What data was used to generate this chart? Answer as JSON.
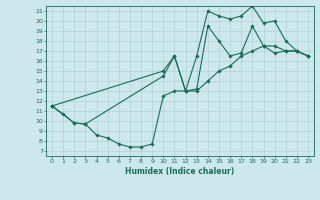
{
  "title": "",
  "xlabel": "Humidex (Indice chaleur)",
  "bg_color": "#cce8ec",
  "line_color": "#1a6b5a",
  "grid_color": "#aacccc",
  "xlim": [
    -0.5,
    23.5
  ],
  "ylim": [
    6.5,
    21.5
  ],
  "xticks": [
    0,
    1,
    2,
    3,
    4,
    5,
    6,
    7,
    8,
    9,
    10,
    11,
    12,
    13,
    14,
    15,
    16,
    17,
    18,
    19,
    20,
    21,
    22,
    23
  ],
  "yticks": [
    7,
    8,
    9,
    10,
    11,
    12,
    13,
    14,
    15,
    16,
    17,
    18,
    19,
    20,
    21
  ],
  "line1_x": [
    0,
    1,
    2,
    3,
    4,
    5,
    6,
    7,
    8,
    9,
    10,
    11,
    12,
    13,
    14,
    15,
    16,
    17,
    18,
    19,
    20,
    21,
    22,
    23
  ],
  "line1_y": [
    11.5,
    10.7,
    9.8,
    9.7,
    8.6,
    8.3,
    7.7,
    7.4,
    7.4,
    7.7,
    12.5,
    13.0,
    13.0,
    13.0,
    14.0,
    15.0,
    15.5,
    16.5,
    17.0,
    17.5,
    17.5,
    17.0,
    17.0,
    16.5
  ],
  "line2_x": [
    0,
    2,
    3,
    10,
    11,
    12,
    13,
    14,
    15,
    16,
    17,
    18,
    19,
    20,
    21,
    22,
    23
  ],
  "line2_y": [
    11.5,
    9.8,
    9.7,
    14.5,
    16.5,
    13.0,
    13.2,
    19.5,
    18.0,
    16.5,
    16.8,
    19.5,
    17.5,
    16.8,
    17.0,
    17.0,
    16.5
  ],
  "line3_x": [
    0,
    10,
    11,
    12,
    13,
    14,
    15,
    16,
    17,
    18,
    19,
    20,
    21,
    22,
    23
  ],
  "line3_y": [
    11.5,
    15.0,
    16.5,
    13.0,
    16.5,
    21.0,
    20.5,
    20.2,
    20.5,
    21.5,
    19.8,
    20.0,
    18.0,
    17.0,
    16.5
  ]
}
